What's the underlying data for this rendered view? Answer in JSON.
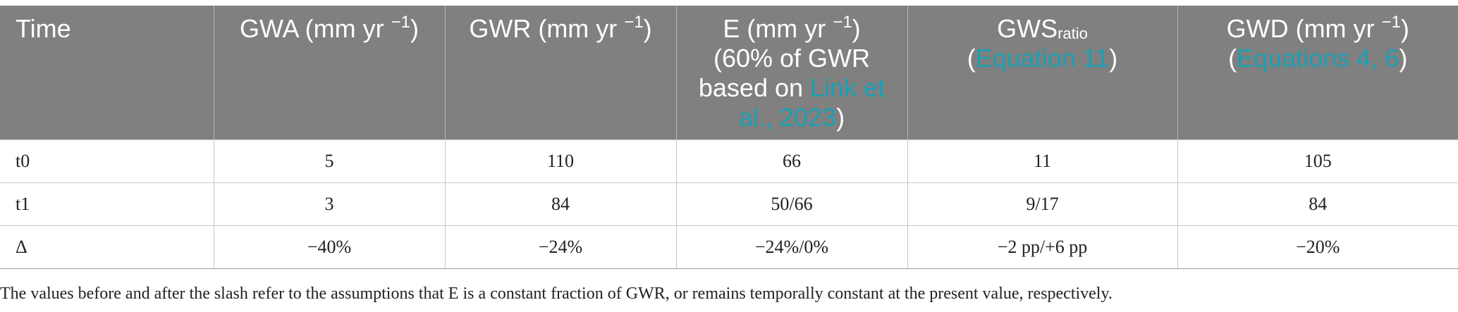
{
  "table": {
    "headers": {
      "time": "Time",
      "gwa": {
        "text": "GWA (mm yr ",
        "sup": "−1",
        "close": ")"
      },
      "gwr": {
        "text": "GWR (mm yr ",
        "sup": "−1",
        "close": ")"
      },
      "e": {
        "line1": "E (mm yr ",
        "sup": "−1",
        "close": ")",
        "line2": "(60% of GWR",
        "line3": "based on ",
        "link": "Link et al., 2023",
        "end": ")"
      },
      "gws": {
        "base": "GWS",
        "sub": "ratio",
        "open": "(",
        "link": "Equation 11",
        "close": ")"
      },
      "gwd": {
        "text": "GWD (mm yr ",
        "sup": "−1",
        "close": ")",
        "open": "(",
        "link": "Equations 4, 6",
        "end": ")"
      }
    },
    "rows": [
      {
        "time": "t0",
        "gwa": "5",
        "gwr": "110",
        "e": "66",
        "gws": "11",
        "gwd": "105"
      },
      {
        "time": "t1",
        "gwa": "3",
        "gwr": "84",
        "e": "50/66",
        "gws": "9/17",
        "gwd": "84"
      },
      {
        "time": "Δ",
        "gwa": "−40%",
        "gwr": "−24%",
        "e": "−24%/0%",
        "gws": "−2 pp/+6 pp",
        "gwd": "−20%"
      }
    ]
  },
  "footnote": "The values before and after the slash refer to the assumptions that E is a constant fraction of GWR, or remains temporally constant at the present value, respectively.",
  "colors": {
    "header_bg": "#808080",
    "header_text": "#ffffff",
    "link": "#1aa0b4"
  }
}
